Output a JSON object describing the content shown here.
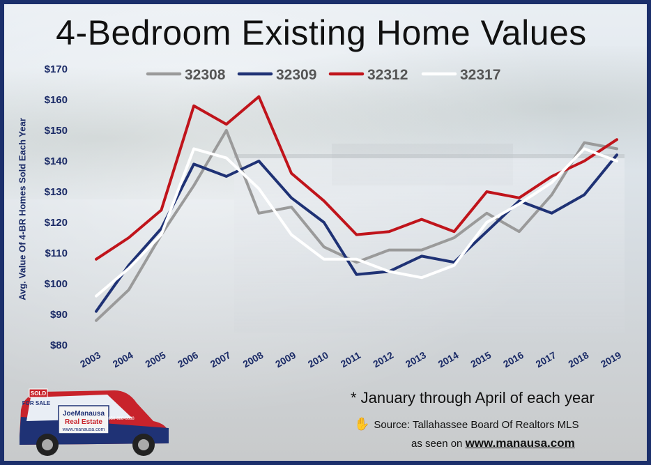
{
  "title": "4-Bedroom Existing Home Values",
  "ylabel": "Avg. Value Of 4-BR Homes Sold Each Year",
  "footnote": "* January through April of each year",
  "source": "Source: Tallahassee Board Of Realtors MLS",
  "seen_on_prefix": "as seen on ",
  "seen_on_url": "www.manausa.com",
  "car_labels": {
    "sold": "SOLD",
    "for_sale": "FOR SALE",
    "brand": "JoeManausa",
    "brand2": "Real Estate",
    "site": "www.manausa.com",
    "phone": "850-888-0888"
  },
  "colors": {
    "32308": "#9a9a9a",
    "32309": "#1f3275",
    "32312": "#c0141b",
    "32317": "#ffffff",
    "axis_text": "#1a2a66",
    "border": "#1b2f6b"
  },
  "chart_data": {
    "type": "line",
    "x": [
      "2003",
      "2004",
      "2005",
      "2006",
      "2007",
      "2008",
      "2009",
      "2010",
      "2011",
      "2012",
      "2013",
      "2014",
      "2015",
      "2016",
      "2017",
      "2018",
      "2019"
    ],
    "ylim": [
      80,
      170
    ],
    "yticks": [
      "$80",
      "$90",
      "$100",
      "$110",
      "$120",
      "$130",
      "$140",
      "$150",
      "$160",
      "$170"
    ],
    "ytick_values": [
      80,
      90,
      100,
      110,
      120,
      130,
      140,
      150,
      160,
      170
    ],
    "ylabel": "Avg. Value Of 4-BR Homes Sold Each Year",
    "legend_position": "top",
    "grid": false,
    "series": [
      {
        "name": "32308",
        "values": [
          88,
          98,
          116,
          132,
          150,
          123,
          125,
          112,
          107,
          111,
          111,
          115,
          123,
          117,
          129,
          146,
          144
        ]
      },
      {
        "name": "32309",
        "values": [
          91,
          106,
          118,
          139,
          135,
          140,
          128,
          120,
          103,
          104,
          109,
          107,
          117,
          127,
          123,
          129,
          142
        ]
      },
      {
        "name": "32312",
        "values": [
          108,
          115,
          124,
          158,
          152,
          161,
          136,
          127,
          116,
          117,
          121,
          117,
          130,
          128,
          135,
          140,
          147
        ]
      },
      {
        "name": "32317",
        "values": [
          96,
          105,
          116,
          144,
          141,
          131,
          116,
          108,
          108,
          104,
          102,
          106,
          120,
          126,
          133,
          144,
          140
        ]
      }
    ]
  }
}
